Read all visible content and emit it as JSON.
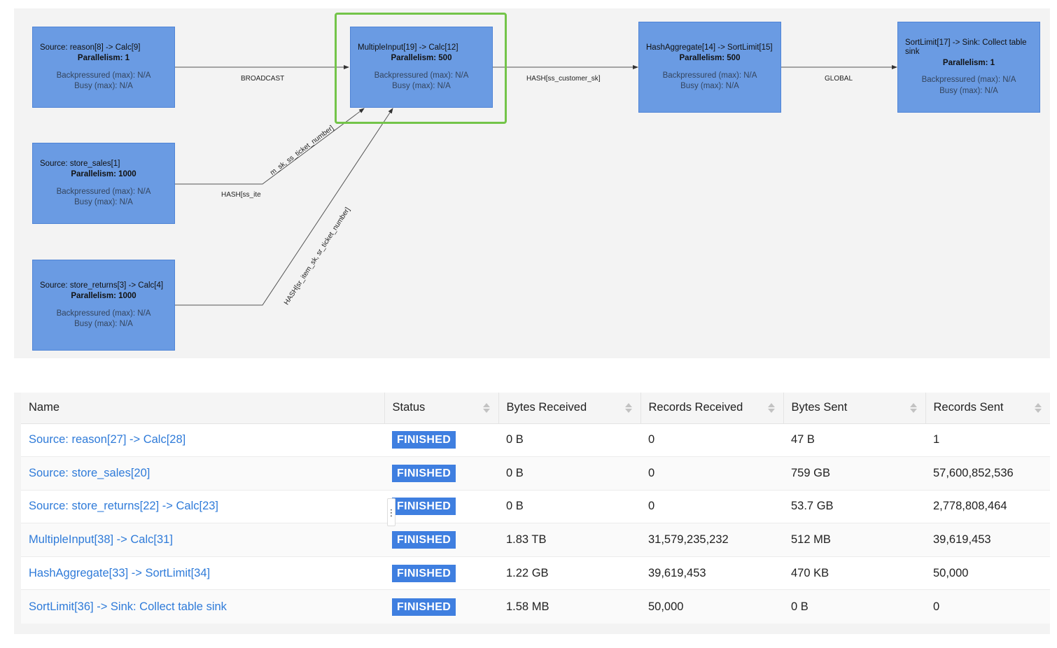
{
  "graph": {
    "nodes": [
      {
        "id": "reason",
        "title": "Source: reason[8] -> Calc[9]",
        "parallelism": "Parallelism: 1",
        "backpressured": "Backpressured (max): N/A",
        "busy": "Busy (max): N/A"
      },
      {
        "id": "store_sales",
        "title": "Source: store_sales[1]",
        "parallelism": "Parallelism: 1000",
        "backpressured": "Backpressured (max): N/A",
        "busy": "Busy (max): N/A"
      },
      {
        "id": "store_returns",
        "title": "Source: store_returns[3] -> Calc[4]",
        "parallelism": "Parallelism: 1000",
        "backpressured": "Backpressured (max): N/A",
        "busy": "Busy (max): N/A"
      },
      {
        "id": "multiple_input",
        "title": "MultipleInput[19] -> Calc[12]",
        "parallelism": "Parallelism: 500",
        "backpressured": "Backpressured (max): N/A",
        "busy": "Busy (max): N/A"
      },
      {
        "id": "hash_aggregate",
        "title": "HashAggregate[14] -> SortLimit[15]",
        "parallelism": "Parallelism: 500",
        "backpressured": "Backpressured (max): N/A",
        "busy": "Busy (max): N/A"
      },
      {
        "id": "sort_limit",
        "title": "SortLimit[17] -> Sink: Collect table sink",
        "parallelism": "Parallelism: 1",
        "backpressured": "Backpressured (max): N/A",
        "busy": "Busy (max): N/A"
      }
    ],
    "edges": {
      "broadcast": "BROADCAST",
      "hash_customer": "HASH[ss_customer_sk]",
      "global": "GLOBAL",
      "hash_item_a": "HASH[ss_ite",
      "hash_item_b": "m_sk, ss_ticket_number]",
      "hash_returns": "HASH[sr_item_sk, sr_ticket_number]"
    }
  },
  "table": {
    "columns": [
      "Name",
      "Status",
      "Bytes Received",
      "Records Received",
      "Bytes Sent",
      "Records Sent"
    ],
    "rows": [
      {
        "name": "Source: reason[27] -> Calc[28]",
        "status": "FINISHED",
        "bytes_received": "0 B",
        "records_received": "0",
        "bytes_sent": "47 B",
        "records_sent": "1"
      },
      {
        "name": "Source: store_sales[20]",
        "status": "FINISHED",
        "bytes_received": "0 B",
        "records_received": "0",
        "bytes_sent": "759 GB",
        "records_sent": "57,600,852,536"
      },
      {
        "name": "Source: store_returns[22] -> Calc[23]",
        "status": "FINISHED",
        "bytes_received": "0 B",
        "records_received": "0",
        "bytes_sent": "53.7 GB",
        "records_sent": "2,778,808,464"
      },
      {
        "name": "MultipleInput[38] -> Calc[31]",
        "status": "FINISHED",
        "bytes_received": "1.83 TB",
        "records_received": "31,579,235,232",
        "bytes_sent": "512 MB",
        "records_sent": "39,619,453"
      },
      {
        "name": "HashAggregate[33] -> SortLimit[34]",
        "status": "FINISHED",
        "bytes_received": "1.22 GB",
        "records_received": "39,619,453",
        "bytes_sent": "470 KB",
        "records_sent": "50,000"
      },
      {
        "name": "SortLimit[36] -> Sink: Collect table sink",
        "status": "FINISHED",
        "bytes_received": "1.58 MB",
        "records_received": "50,000",
        "bytes_sent": "0 B",
        "records_sent": "0"
      }
    ],
    "resize_handle": "⋮"
  },
  "colors": {
    "node_fill": "#6a9be3",
    "highlight": "#73c449",
    "badge": "#3f7fe0",
    "link": "#2f7bd9"
  }
}
